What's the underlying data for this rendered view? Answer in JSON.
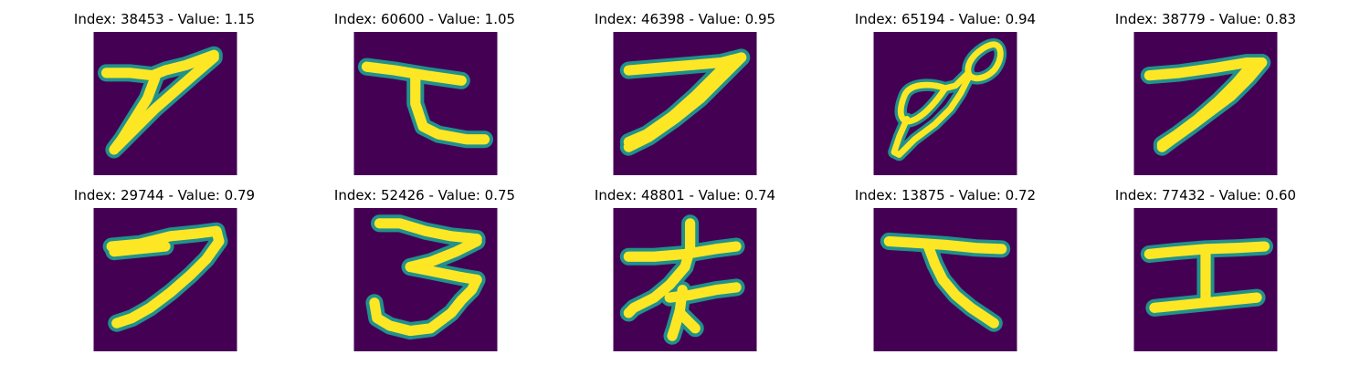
{
  "colors": {
    "background": "#440154",
    "glow": "#21918c",
    "stroke": "#fde725"
  },
  "panels": [
    {
      "title": "Index: 38453 - Value: 1.15",
      "glyph": "handwritten-seven-with-long-slash"
    },
    {
      "title": "Index: 60600 - Value: 1.05",
      "glyph": "handwritten-character-ta"
    },
    {
      "title": "Index: 46398 - Value: 0.95",
      "glyph": "handwritten-seven"
    },
    {
      "title": "Index: 65194 - Value: 0.94",
      "glyph": "handwritten-loop-figure"
    },
    {
      "title": "Index: 38779 - Value: 0.83",
      "glyph": "handwritten-seven"
    },
    {
      "title": "Index: 29744 - Value: 0.79",
      "glyph": "handwritten-seven"
    },
    {
      "title": "Index: 52426 - Value: 0.75",
      "glyph": "handwritten-three"
    },
    {
      "title": "Index: 48801 - Value: 0.74",
      "glyph": "handwritten-character-na"
    },
    {
      "title": "Index: 13875 - Value: 0.72",
      "glyph": "handwritten-character-ta"
    },
    {
      "title": "Index: 77432 - Value: 0.60",
      "glyph": "handwritten-character-e"
    }
  ]
}
